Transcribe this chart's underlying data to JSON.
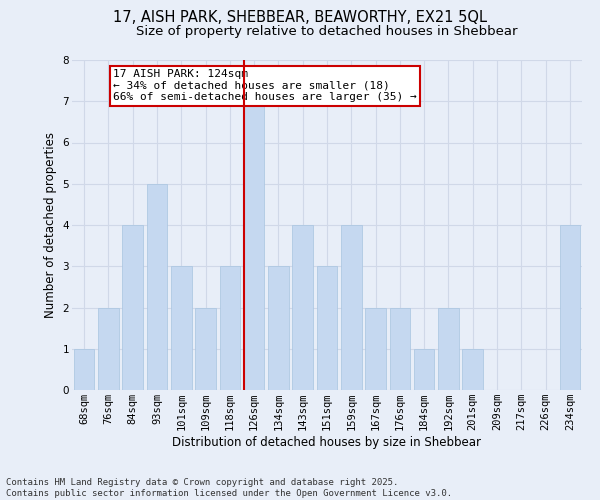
{
  "title_line1": "17, AISH PARK, SHEBBEAR, BEAWORTHY, EX21 5QL",
  "title_line2": "Size of property relative to detached houses in Shebbear",
  "xlabel": "Distribution of detached houses by size in Shebbear",
  "ylabel": "Number of detached properties",
  "categories": [
    "68sqm",
    "76sqm",
    "84sqm",
    "93sqm",
    "101sqm",
    "109sqm",
    "118sqm",
    "126sqm",
    "134sqm",
    "143sqm",
    "151sqm",
    "159sqm",
    "167sqm",
    "176sqm",
    "184sqm",
    "192sqm",
    "201sqm",
    "209sqm",
    "217sqm",
    "226sqm",
    "234sqm"
  ],
  "values": [
    1,
    2,
    4,
    5,
    3,
    2,
    3,
    7,
    3,
    4,
    3,
    4,
    2,
    2,
    1,
    2,
    1,
    0,
    0,
    0,
    4
  ],
  "bar_color": "#c5d8f0",
  "bar_edge_color": "#a8c4e0",
  "highlight_index": 7,
  "vline_color": "#cc0000",
  "annotation_text": "17 AISH PARK: 124sqm\n← 34% of detached houses are smaller (18)\n66% of semi-detached houses are larger (35) →",
  "annotation_box_color": "#ffffff",
  "annotation_box_edgecolor": "#cc0000",
  "ylim": [
    0,
    8
  ],
  "yticks": [
    0,
    1,
    2,
    3,
    4,
    5,
    6,
    7,
    8
  ],
  "grid_color": "#d0d8e8",
  "background_color": "#e8eef8",
  "footer_text": "Contains HM Land Registry data © Crown copyright and database right 2025.\nContains public sector information licensed under the Open Government Licence v3.0.",
  "title_fontsize": 10.5,
  "subtitle_fontsize": 9.5,
  "axis_label_fontsize": 8.5,
  "tick_fontsize": 7.5,
  "annotation_fontsize": 8,
  "footer_fontsize": 6.5
}
